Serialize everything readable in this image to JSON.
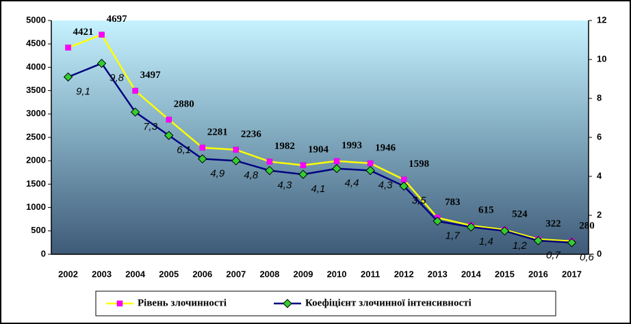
{
  "chart_data": {
    "type": "line",
    "categories": [
      "2002",
      "2003",
      "2004",
      "2005",
      "2006",
      "2007",
      "2008",
      "2009",
      "2010",
      "2011",
      "2012",
      "2013",
      "2014",
      "2015",
      "2016",
      "2017"
    ],
    "series": [
      {
        "name": "Рівень злочинності",
        "color": "#ffff00",
        "marker_color": "#ff00ff",
        "marker": "square",
        "values": [
          4421,
          4697,
          3497,
          2880,
          2281,
          2236,
          1982,
          1904,
          1993,
          1946,
          1598,
          783,
          615,
          524,
          322,
          280
        ]
      },
      {
        "name": "Коефіцієнт злочинної інтенсивності",
        "color": "#000080",
        "marker_color": "#33cc33",
        "marker": "diamond",
        "axis": "y2",
        "values": [
          9.1,
          9.8,
          7.3,
          6.1,
          4.9,
          4.8,
          4.3,
          4.1,
          4.4,
          4.3,
          3.5,
          1.7,
          1.4,
          1.2,
          0.7,
          0.6
        ],
        "value_labels": [
          "9,1",
          "9,8",
          "7,3",
          "6,1",
          "4,9",
          "4,8",
          "4,3",
          "4,1",
          "4,4",
          "4,3",
          "3,5",
          "1,7",
          "1,4",
          "1,2",
          "0,7",
          "0,6"
        ]
      }
    ],
    "ylim": [
      0,
      5000
    ],
    "yticks": [
      0,
      500,
      1000,
      1500,
      2000,
      2500,
      3000,
      3500,
      4000,
      4500,
      5000
    ],
    "y2lim": [
      0,
      12
    ],
    "y2ticks": [
      0,
      2,
      4,
      6,
      8,
      10,
      12
    ],
    "legend": "bottom"
  }
}
